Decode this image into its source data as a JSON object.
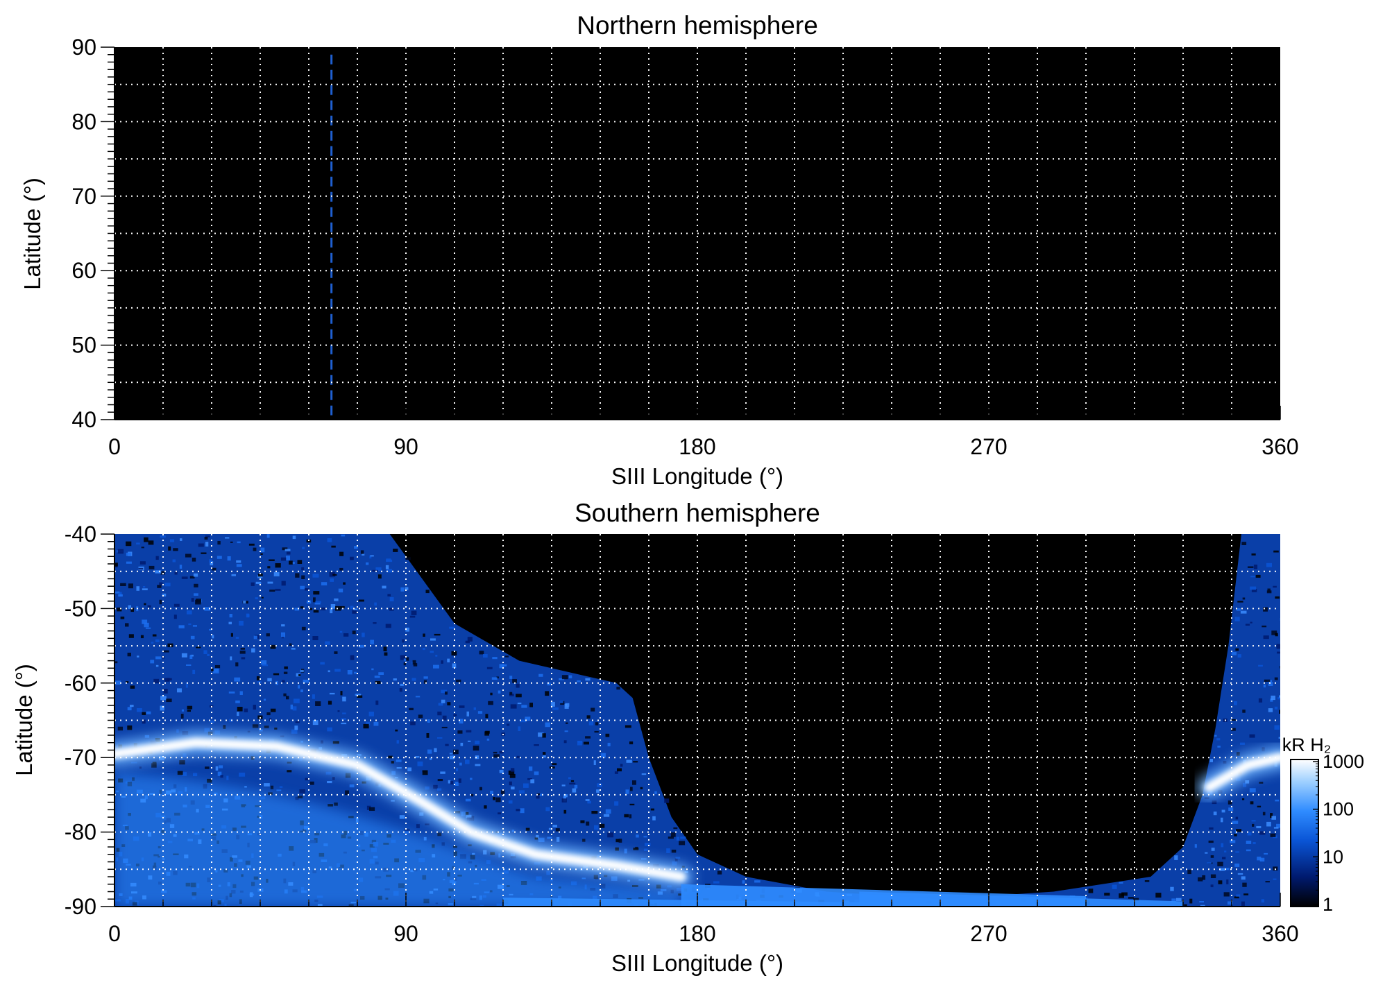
{
  "chart_data": [
    {
      "type": "heatmap",
      "title": "Northern hemisphere",
      "xlabel": "SIII Longitude (°)",
      "ylabel": "Latitude (°)",
      "xlim": [
        0,
        360
      ],
      "ylim": [
        40,
        90
      ],
      "xticks": [
        0,
        90,
        180,
        270,
        360
      ],
      "yticks": [
        40,
        50,
        60,
        70,
        80,
        90
      ],
      "grid": true,
      "grid_x_step": 15,
      "grid_y_step": 5,
      "background": "#000000",
      "marker_line": {
        "longitude": 67,
        "style": "dashed",
        "color": "#1f5fd0"
      },
      "emission": "none visible"
    },
    {
      "type": "heatmap",
      "title": "Southern hemisphere",
      "xlabel": "SIII Longitude (°)",
      "ylabel": "Latitude (°)",
      "xlim": [
        0,
        360
      ],
      "ylim": [
        -90,
        -40
      ],
      "xticks": [
        0,
        90,
        180,
        270,
        360
      ],
      "yticks": [
        -90,
        -80,
        -70,
        -60,
        -50,
        -40
      ],
      "grid": true,
      "grid_x_step": 15,
      "grid_y_step": 5,
      "background": "#000000",
      "observed_region_boundary": [
        [
          0,
          -40
        ],
        [
          85,
          -40
        ],
        [
          105,
          -52
        ],
        [
          125,
          -57
        ],
        [
          145,
          -59
        ],
        [
          155,
          -60
        ],
        [
          160,
          -62
        ],
        [
          165,
          -70
        ],
        [
          172,
          -78
        ],
        [
          180,
          -83
        ],
        [
          195,
          -86
        ],
        [
          220,
          -88
        ],
        [
          255,
          -89
        ],
        [
          290,
          -88
        ],
        [
          320,
          -86
        ],
        [
          330,
          -82
        ],
        [
          336,
          -75
        ],
        [
          340,
          -66
        ],
        [
          344,
          -55
        ],
        [
          348,
          -40
        ],
        [
          360,
          -40
        ]
      ],
      "auroral_oval": [
        {
          "lon": 0,
          "lat": -69.5,
          "kR": 1000
        },
        {
          "lon": 25,
          "lat": -68,
          "kR": 1000
        },
        {
          "lon": 50,
          "lat": -68.5,
          "kR": 700
        },
        {
          "lon": 75,
          "lat": -71,
          "kR": 400
        },
        {
          "lon": 95,
          "lat": -76,
          "kR": 600
        },
        {
          "lon": 110,
          "lat": -80,
          "kR": 1000
        },
        {
          "lon": 130,
          "lat": -83,
          "kR": 1000
        },
        {
          "lon": 155,
          "lat": -84.5,
          "kR": 900
        },
        {
          "lon": 175,
          "lat": -86,
          "kR": 400
        },
        {
          "lon": 338,
          "lat": -74,
          "kR": 500
        },
        {
          "lon": 350,
          "lat": -71,
          "kR": 1000
        },
        {
          "lon": 360,
          "lat": -70,
          "kR": 1000
        }
      ],
      "colorbar": {
        "label": "kR H₂",
        "ticks": [
          "1",
          "10",
          "100",
          "1000"
        ],
        "scale": "log",
        "range": [
          1,
          1000
        ],
        "colors": [
          "#000000",
          "#001a6e",
          "#0a55d6",
          "#2f8cff",
          "#9fd0ff",
          "#ffffff"
        ]
      }
    }
  ]
}
